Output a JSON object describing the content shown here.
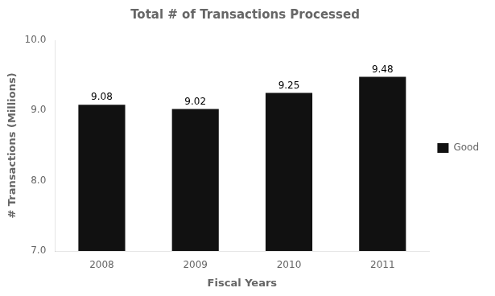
{
  "chart_data": {
    "type": "bar",
    "title": "Total # of Transactions Processed",
    "x_label": "Fiscal Years",
    "y_label": "# Transactions (Millions)",
    "categories": [
      "2008",
      "2009",
      "2010",
      "2011"
    ],
    "series": [
      {
        "name": "Good",
        "color": "#111111",
        "values": [
          9.08,
          9.02,
          9.25,
          9.48
        ]
      }
    ],
    "ylim": [
      7.0,
      10.0
    ],
    "yticks": [
      {
        "value": 7.0,
        "label": "7.0"
      },
      {
        "value": 8.0,
        "label": "8.0"
      },
      {
        "value": 9.0,
        "label": "9.0"
      },
      {
        "value": 10.0,
        "label": "10.0"
      }
    ],
    "grid": false,
    "legend": "right",
    "data_labels": true
  }
}
